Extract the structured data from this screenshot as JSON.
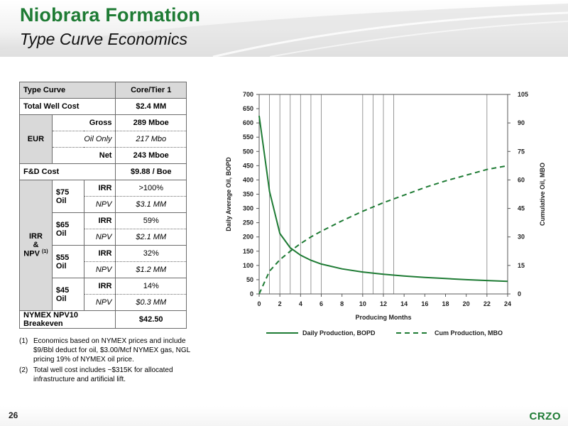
{
  "header": {
    "title": "Niobrara Formation",
    "subtitle": "Type Curve Economics"
  },
  "table": {
    "header": {
      "label": "Type Curve",
      "value": "Core/Tier 1"
    },
    "total_well_cost": {
      "label": "Total Well Cost",
      "value": "$2.4 MM"
    },
    "eur": {
      "label": "EUR",
      "rows": [
        {
          "label": "Gross",
          "value": "289 Mboe"
        },
        {
          "label": "Oil Only",
          "value": "217 Mbo"
        },
        {
          "label": "Net",
          "value": "243 Mboe"
        }
      ]
    },
    "fd_cost": {
      "label": "F&D Cost",
      "value": "$9.88 / Boe"
    },
    "irr_npv": {
      "label_line1": "IRR",
      "label_line2": "&",
      "label_line3": "NPV",
      "label_sup": "(1)",
      "groups": [
        {
          "price": "$75 Oil",
          "irr_label": "IRR",
          "irr": ">100%",
          "npv_label": "NPV",
          "npv": "$3.1 MM"
        },
        {
          "price": "$65 Oil",
          "irr_label": "IRR",
          "irr": "59%",
          "npv_label": "NPV",
          "npv": "$2.1 MM"
        },
        {
          "price": "$55 Oil",
          "irr_label": "IRR",
          "irr": "32%",
          "npv_label": "NPV",
          "npv": "$1.2 MM"
        },
        {
          "price": "$45 Oil",
          "irr_label": "IRR",
          "irr": "14%",
          "npv_label": "NPV",
          "npv": "$0.3 MM"
        }
      ]
    },
    "breakeven": {
      "label": "NYMEX NPV10 Breakeven",
      "value": "$42.50"
    }
  },
  "footnotes": [
    {
      "num": "(1)",
      "text": "Economics based on NYMEX prices and include $9/Bbl deduct for oil, $3.00/Mcf NYMEX gas, NGL pricing 19% of NYMEX oil price."
    },
    {
      "num": "(2)",
      "text": "Total well cost includes ~$315K for allocated infrastructure and artificial lift."
    }
  ],
  "footer": {
    "page_number": "26",
    "logo": "CRZO"
  },
  "colors": {
    "green": "#1e7b34",
    "grid": "#7f7f7f",
    "table_header": "#d9d9d9"
  },
  "chart_data": {
    "type": "line",
    "title": "",
    "xlabel": "Producing Months",
    "ylabel_left": "Daily Average Oil, BOPD",
    "ylabel_right": "Cumulative Oil, MBO",
    "xlim": [
      0,
      24
    ],
    "ylim_left": [
      0,
      700
    ],
    "ylim_right": [
      0,
      105
    ],
    "x_ticks": [
      0,
      2,
      4,
      6,
      8,
      10,
      12,
      14,
      16,
      18,
      20,
      22,
      24
    ],
    "y_ticks_left": [
      0,
      50,
      100,
      150,
      200,
      250,
      300,
      350,
      400,
      450,
      500,
      550,
      600,
      650,
      700
    ],
    "y_ticks_right": [
      0,
      15,
      30,
      45,
      60,
      75,
      90,
      105
    ],
    "vertical_grid_x": [
      1,
      2,
      3,
      4,
      5,
      6,
      10,
      11,
      12,
      13,
      22
    ],
    "grid": "vertical",
    "legend_position": "bottom",
    "series": [
      {
        "name": "Daily Production, BOPD",
        "axis": "left",
        "style": "solid",
        "color": "#1e7b34",
        "x": [
          0,
          1,
          2,
          3,
          4,
          5,
          6,
          8,
          10,
          12,
          14,
          16,
          18,
          20,
          22,
          24
        ],
        "y": [
          625,
          360,
          212,
          162,
          136,
          118,
          105,
          88,
          77,
          69,
          63,
          58,
          54,
          50,
          47,
          44
        ]
      },
      {
        "name": "Cum Production, MBO",
        "axis": "right",
        "style": "dashed",
        "color": "#1e7b34",
        "x": [
          0,
          1,
          2,
          3,
          4,
          5,
          6,
          8,
          10,
          12,
          14,
          16,
          18,
          20,
          22,
          24
        ],
        "y": [
          0,
          12,
          18,
          22.5,
          26.5,
          30,
          33,
          38.5,
          43.5,
          48,
          52,
          56,
          59.5,
          62.5,
          65.5,
          67.5
        ]
      }
    ]
  }
}
